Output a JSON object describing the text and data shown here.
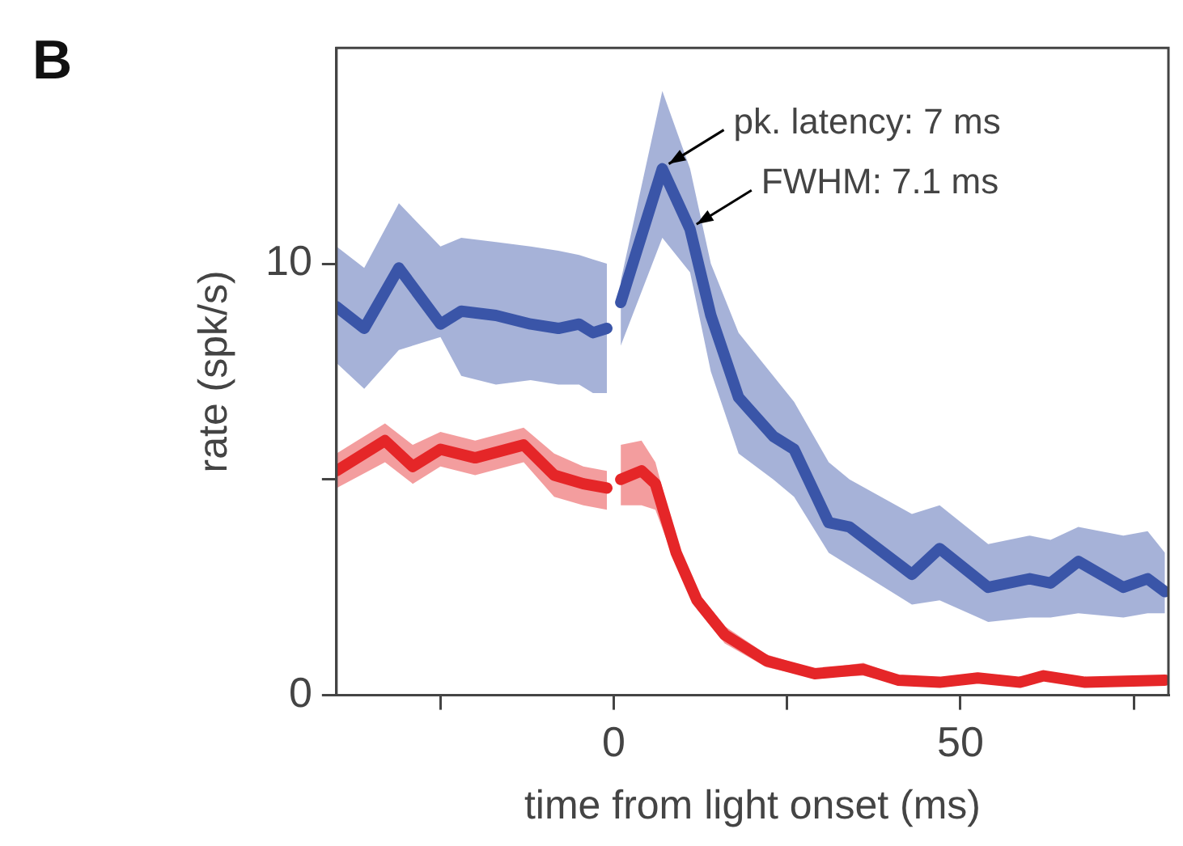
{
  "chart_data": {
    "type": "line",
    "xlabel": "time from light onset (ms)",
    "ylabel": "rate (spk/s)",
    "xlim": [
      -40,
      80
    ],
    "ylim": [
      0,
      15
    ],
    "xticks": [
      {
        "value": -25,
        "label": null
      },
      0,
      {
        "value": 25,
        "label": null
      },
      50,
      {
        "value": 75,
        "label": null
      }
    ],
    "yticks": [
      0,
      {
        "value": 5,
        "label": null
      },
      10
    ],
    "grid": false,
    "marker": "none",
    "line_style": "solid",
    "annotations": [
      "B",
      {
        "text": "pk. latency: 7 ms",
        "x": 7,
        "y": 12.2
      },
      {
        "text": "FWHM: 7.1 ms",
        "x": 11,
        "y": 10.8
      }
    ],
    "series": [
      {
        "color": "#3a55a8",
        "x": [
          -40,
          -36,
          -31,
          -25,
          -22,
          -17,
          -12,
          -8,
          -5,
          -3,
          -1
        ],
        "values": [
          9.0,
          8.5,
          9.9,
          8.6,
          8.9,
          8.8,
          8.6,
          8.5,
          8.6,
          8.4,
          8.5
        ],
        "lower": [
          7.7,
          7.1,
          8.0,
          8.3,
          7.4,
          7.2,
          7.3,
          7.2,
          7.2,
          7.0,
          7.0
        ],
        "upper": [
          10.4,
          9.9,
          11.4,
          10.4,
          10.6,
          10.5,
          10.4,
          10.3,
          10.2,
          10.1,
          10.0
        ]
      },
      {
        "color": "#3a55a8",
        "x": [
          1,
          7,
          11,
          14,
          18,
          23,
          26,
          31,
          34,
          43,
          47,
          54,
          60,
          63,
          67,
          73.5,
          77,
          79.5
        ],
        "values": [
          9.1,
          12.2,
          10.8,
          8.8,
          6.9,
          6.0,
          5.7,
          4.0,
          3.9,
          2.8,
          3.4,
          2.5,
          2.7,
          2.6,
          3.1,
          2.5,
          2.7,
          2.4
        ],
        "lower": [
          8.1,
          10.6,
          9.8,
          7.5,
          5.6,
          5.0,
          4.6,
          3.3,
          3.0,
          2.1,
          2.2,
          1.7,
          1.8,
          1.8,
          1.9,
          1.8,
          1.9,
          1.9
        ],
        "upper": [
          9.6,
          14.0,
          12.2,
          10.0,
          8.4,
          7.4,
          6.8,
          5.4,
          5.0,
          4.2,
          4.4,
          3.5,
          3.7,
          3.6,
          3.9,
          3.7,
          3.8,
          3.3
        ]
      },
      {
        "color": "#e52628",
        "x": [
          -40,
          -33,
          -29,
          -25,
          -20,
          -13,
          -8.6,
          -4.4,
          -1
        ],
        "values": [
          5.2,
          5.9,
          5.3,
          5.7,
          5.5,
          5.8,
          5.1,
          4.9,
          4.8
        ],
        "lower": [
          4.8,
          5.4,
          4.9,
          5.3,
          5.1,
          5.4,
          4.6,
          4.4,
          4.3
        ],
        "upper": [
          5.6,
          6.3,
          5.8,
          6.1,
          5.9,
          6.2,
          5.6,
          5.3,
          5.2
        ]
      },
      {
        "color": "#e52628",
        "x": [
          1,
          4,
          6,
          9,
          12,
          16,
          22,
          29,
          36,
          41,
          47,
          52.5,
          58.6,
          62,
          68,
          79.5
        ],
        "values": [
          5.0,
          5.2,
          4.9,
          3.3,
          2.2,
          1.4,
          0.8,
          0.5,
          0.6,
          0.35,
          0.3,
          0.4,
          0.3,
          0.45,
          0.3,
          0.35
        ],
        "lower": [
          4.4,
          4.4,
          4.3,
          3.0,
          2.0,
          1.2,
          0.65,
          0.4,
          0.45,
          0.25,
          0.2,
          0.3,
          0.2,
          0.35,
          0.2,
          0.25
        ],
        "upper": [
          5.8,
          5.9,
          5.4,
          3.6,
          2.4,
          1.6,
          0.95,
          0.6,
          0.75,
          0.45,
          0.4,
          0.5,
          0.4,
          0.55,
          0.4,
          0.45
        ]
      }
    ]
  }
}
